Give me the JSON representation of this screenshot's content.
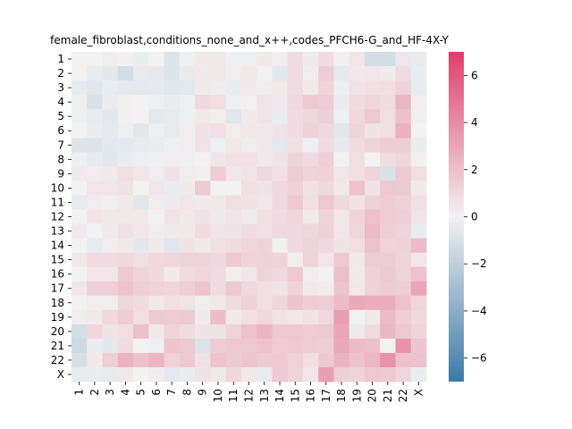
{
  "chart_data": {
    "type": "heatmap",
    "title": "female_fibroblast,conditions_none_and_x++,codes_PFCH6-G_and_HF-4X-Y",
    "row_labels": [
      "1",
      "2",
      "3",
      "4",
      "5",
      "6",
      "7",
      "8",
      "9",
      "10",
      "11",
      "12",
      "13",
      "14",
      "15",
      "16",
      "17",
      "18",
      "19",
      "20",
      "21",
      "22",
      "X"
    ],
    "col_labels": [
      "1",
      "2",
      "3",
      "4",
      "5",
      "6",
      "7",
      "8",
      "9",
      "10",
      "11",
      "12",
      "13",
      "14",
      "15",
      "16",
      "17",
      "18",
      "19",
      "20",
      "21",
      "22",
      "X"
    ],
    "vmin": -7,
    "vmax": 7,
    "colorbar_ticks": [
      -6,
      -4,
      -2,
      0,
      2,
      4,
      6
    ],
    "colors": {
      "negative_end": "#3d7aa6",
      "center": "#f2f2f2",
      "positive_end": "#de3f6e"
    },
    "values": [
      [
        0.0,
        0.0,
        0.2,
        0.1,
        -0.3,
        0.0,
        -0.8,
        -0.2,
        0.4,
        0.4,
        -0.2,
        -0.2,
        0.4,
        0.2,
        0.9,
        0.3,
        0.9,
        0.1,
        0.5,
        -1.2,
        -1.2,
        0.5,
        -0.4
      ],
      [
        0.0,
        -0.3,
        -0.6,
        -1.2,
        -0.4,
        -0.5,
        -0.8,
        -0.4,
        0.3,
        0.4,
        0.2,
        0.4,
        0.0,
        -0.6,
        0.9,
        0.2,
        1.5,
        -0.5,
        0.4,
        0.5,
        0.3,
        0.9,
        -0.3
      ],
      [
        -0.4,
        -0.7,
        -0.3,
        -0.5,
        -0.6,
        -0.5,
        -0.7,
        -0.6,
        0.3,
        0.2,
        -0.3,
        0.3,
        0.2,
        0.4,
        0.9,
        0.4,
        1.2,
        -0.2,
        0.6,
        0.7,
        0.8,
        1.3,
        -0.4
      ],
      [
        -0.2,
        -1.0,
        -0.3,
        0.1,
        0.0,
        -0.2,
        -0.3,
        -0.2,
        1.0,
        0.8,
        -0.2,
        0.1,
        0.6,
        0.3,
        1.0,
        1.6,
        1.5,
        -0.3,
        0.9,
        1.1,
        0.9,
        2.4,
        0.2
      ],
      [
        -0.2,
        -0.4,
        -0.6,
        0.1,
        0.0,
        -0.5,
        -0.4,
        -0.2,
        0.4,
        0.2,
        -0.7,
        0.3,
        0.6,
        -0.3,
        0.9,
        1.1,
        1.4,
        -0.2,
        1.0,
        1.7,
        0.8,
        2.0,
        0.2
      ],
      [
        0.0,
        -0.3,
        -0.5,
        -0.2,
        -0.6,
        -0.2,
        -0.4,
        0.2,
        0.6,
        0.7,
        0.2,
        0.4,
        0.3,
        0.6,
        0.9,
        1.3,
        1.0,
        -0.7,
        1.2,
        0.6,
        0.8,
        2.6,
        0.0
      ],
      [
        -0.8,
        -0.8,
        -0.6,
        -0.5,
        -0.4,
        -0.3,
        -0.2,
        0.2,
        0.6,
        -0.2,
        0.4,
        0.2,
        0.3,
        -0.6,
        0.8,
        -0.2,
        0.9,
        -0.5,
        0.9,
        1.2,
        1.5,
        1.5,
        -0.3
      ],
      [
        -0.2,
        -0.4,
        -0.6,
        -0.3,
        -0.2,
        -0.1,
        0.1,
        0.1,
        0.0,
        0.5,
        0.7,
        0.7,
        0.3,
        0.6,
        1.2,
        1.0,
        1.4,
        0.0,
        0.8,
        0.0,
        0.9,
        1.1,
        0.1
      ],
      [
        0.3,
        0.2,
        0.3,
        0.8,
        0.5,
        0.2,
        0.6,
        0.2,
        0.1,
        1.5,
        0.5,
        0.6,
        1.0,
        0.7,
        1.5,
        1.2,
        1.3,
        0.5,
        0.8,
        1.2,
        -1.0,
        1.6,
        0.8
      ],
      [
        0.0,
        0.5,
        0.5,
        0.6,
        0.0,
        0.5,
        -0.3,
        0.3,
        1.6,
        0.0,
        0.0,
        0.8,
        0.6,
        1.0,
        1.3,
        0.7,
        1.0,
        0.4,
        1.9,
        0.6,
        1.7,
        1.6,
        0.3
      ],
      [
        -0.4,
        0.2,
        0.1,
        0.3,
        -0.6,
        0.2,
        0.3,
        0.5,
        0.3,
        0.4,
        0.8,
        0.6,
        0.5,
        1.0,
        1.6,
        0.8,
        1.7,
        1.0,
        0.6,
        1.3,
        1.5,
        1.3,
        0.7
      ],
      [
        0.0,
        0.5,
        0.4,
        0.4,
        0.3,
        0.0,
        0.6,
        0.4,
        0.6,
        0.3,
        0.6,
        0.3,
        0.8,
        0.9,
        1.1,
        0.4,
        1.2,
        0.5,
        1.2,
        1.9,
        1.5,
        1.4,
        0.6
      ],
      [
        0.3,
        0.0,
        0.3,
        0.7,
        0.5,
        0.2,
        0.3,
        0.4,
        0.9,
        0.6,
        0.6,
        0.9,
        0.7,
        1.0,
        1.0,
        1.1,
        1.3,
        0.5,
        1.1,
        2.2,
        1.4,
        1.2,
        -0.4
      ],
      [
        0.0,
        -0.4,
        0.2,
        0.4,
        -0.6,
        0.3,
        -0.7,
        0.6,
        0.4,
        0.7,
        0.9,
        1.1,
        1.2,
        0.1,
        1.0,
        1.2,
        1.0,
        0.6,
        0.8,
        1.9,
        1.2,
        1.3,
        2.2
      ],
      [
        0.4,
        0.9,
        0.9,
        1.0,
        0.8,
        1.0,
        1.1,
        1.2,
        1.2,
        1.0,
        1.6,
        1.2,
        1.3,
        1.2,
        0.2,
        1.2,
        0.5,
        1.6,
        0.4,
        1.5,
        1.5,
        1.2,
        0.5
      ],
      [
        0.0,
        0.5,
        0.5,
        1.6,
        1.2,
        1.0,
        0.3,
        0.9,
        1.1,
        0.9,
        0.2,
        0.5,
        1.2,
        1.0,
        1.7,
        0.2,
        0.0,
        2.0,
        0.3,
        1.3,
        1.6,
        1.2,
        1.9
      ],
      [
        0.5,
        1.4,
        1.4,
        1.8,
        1.4,
        1.2,
        1.1,
        1.4,
        1.8,
        0.9,
        1.6,
        1.0,
        0.8,
        0.6,
        1.2,
        0.3,
        0.2,
        1.8,
        0.4,
        1.3,
        1.5,
        1.4,
        3.0
      ],
      [
        0.0,
        0.2,
        0.2,
        1.1,
        0.9,
        0.4,
        0.8,
        0.6,
        0.2,
        0.4,
        0.9,
        1.3,
        0.8,
        1.1,
        1.8,
        1.5,
        1.4,
        2.1,
        2.9,
        2.7,
        2.7,
        1.9,
        1.1
      ],
      [
        0.2,
        0.4,
        1.0,
        1.5,
        0.8,
        1.6,
        1.5,
        1.6,
        0.3,
        2.1,
        0.4,
        0.7,
        1.0,
        0.6,
        0.4,
        0.6,
        1.0,
        3.3,
        0.0,
        0.4,
        2.2,
        1.4,
        1.0
      ],
      [
        -1.2,
        1.1,
        0.6,
        0.8,
        2.0,
        0.4,
        1.2,
        0.9,
        0.6,
        0.6,
        1.2,
        1.9,
        2.4,
        1.6,
        1.7,
        1.5,
        1.6,
        3.0,
        0.3,
        0.9,
        2.3,
        1.7,
        1.2
      ],
      [
        -1.4,
        -0.3,
        -0.6,
        0.9,
        0.0,
        -0.2,
        1.8,
        1.6,
        -0.9,
        1.5,
        1.6,
        1.7,
        1.9,
        1.5,
        1.6,
        1.5,
        1.4,
        2.9,
        2.1,
        2.0,
        0.0,
        3.7,
        1.8
      ],
      [
        -1.1,
        0.4,
        1.4,
        2.5,
        1.9,
        2.4,
        1.3,
        1.6,
        0.7,
        1.8,
        1.6,
        1.8,
        1.5,
        1.6,
        1.3,
        0.8,
        1.7,
        2.5,
        1.9,
        2.3,
        3.8,
        1.9,
        1.9
      ],
      [
        -0.3,
        -0.3,
        -0.4,
        0.4,
        0.0,
        0.2,
        -0.5,
        -0.3,
        0.6,
        0.4,
        1.1,
        0.4,
        -0.4,
        1.6,
        1.2,
        0.5,
        3.2,
        1.4,
        1.2,
        1.7,
        1.6,
        1.1,
        -0.3
      ]
    ]
  }
}
